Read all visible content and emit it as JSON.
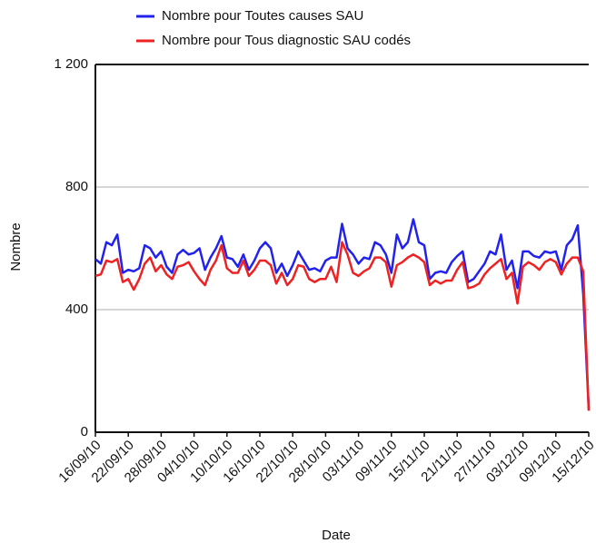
{
  "chart_data": {
    "type": "line",
    "x_label": "Date",
    "y_label": "Nombre",
    "categories": [
      "16/09/10",
      null,
      null,
      null,
      null,
      null,
      "22/09/10",
      null,
      null,
      null,
      null,
      null,
      "28/09/10",
      null,
      null,
      null,
      null,
      null,
      "04/10/10",
      null,
      null,
      null,
      null,
      null,
      "10/10/10",
      null,
      null,
      null,
      null,
      null,
      "16/10/10",
      null,
      null,
      null,
      null,
      null,
      "22/10/10",
      null,
      null,
      null,
      null,
      null,
      "28/10/10",
      null,
      null,
      null,
      null,
      null,
      "03/11/10",
      null,
      null,
      null,
      null,
      null,
      "09/11/10",
      null,
      null,
      null,
      null,
      null,
      "15/11/10",
      null,
      null,
      null,
      null,
      null,
      "21/11/10",
      null,
      null,
      null,
      null,
      null,
      "27/11/10",
      null,
      null,
      null,
      null,
      null,
      "03/12/10",
      null,
      null,
      null,
      null,
      null,
      "09/12/10",
      null,
      null,
      null,
      null,
      null,
      "15/12/10"
    ],
    "series": [
      {
        "name": "Nombre pour Toutes causes SAU",
        "color": "#2222ee",
        "values": [
          565,
          550,
          620,
          610,
          645,
          520,
          530,
          525,
          535,
          610,
          600,
          570,
          590,
          540,
          520,
          580,
          595,
          580,
          585,
          600,
          530,
          570,
          600,
          640,
          570,
          565,
          540,
          580,
          530,
          560,
          600,
          620,
          600,
          520,
          550,
          510,
          545,
          590,
          560,
          530,
          535,
          525,
          560,
          570,
          570,
          680,
          600,
          580,
          550,
          570,
          565,
          620,
          610,
          580,
          520,
          645,
          600,
          620,
          695,
          620,
          610,
          500,
          520,
          525,
          520,
          555,
          575,
          590,
          490,
          500,
          525,
          550,
          590,
          580,
          645,
          530,
          560,
          470,
          590,
          590,
          575,
          570,
          590,
          585,
          590,
          530,
          610,
          630,
          675,
          450,
          75
        ]
      },
      {
        "name": "Nombre pour Tous diagnostic SAU codés",
        "color": "#ee2222",
        "values": [
          510,
          515,
          560,
          555,
          565,
          490,
          500,
          465,
          500,
          550,
          570,
          525,
          545,
          515,
          500,
          540,
          545,
          555,
          525,
          500,
          480,
          530,
          560,
          610,
          535,
          520,
          520,
          560,
          510,
          530,
          560,
          560,
          545,
          485,
          520,
          480,
          500,
          545,
          540,
          500,
          490,
          500,
          500,
          540,
          490,
          620,
          580,
          520,
          510,
          525,
          535,
          570,
          570,
          555,
          475,
          545,
          555,
          570,
          580,
          570,
          555,
          480,
          495,
          485,
          495,
          495,
          530,
          555,
          470,
          475,
          485,
          515,
          535,
          550,
          565,
          500,
          520,
          420,
          540,
          555,
          545,
          530,
          555,
          565,
          555,
          515,
          550,
          570,
          570,
          525,
          70
        ]
      }
    ],
    "ylim": [
      0,
      1200
    ],
    "yticks": [
      0,
      400,
      800,
      {
        "value": 1200,
        "label": "1 200"
      }
    ],
    "grid": true
  }
}
